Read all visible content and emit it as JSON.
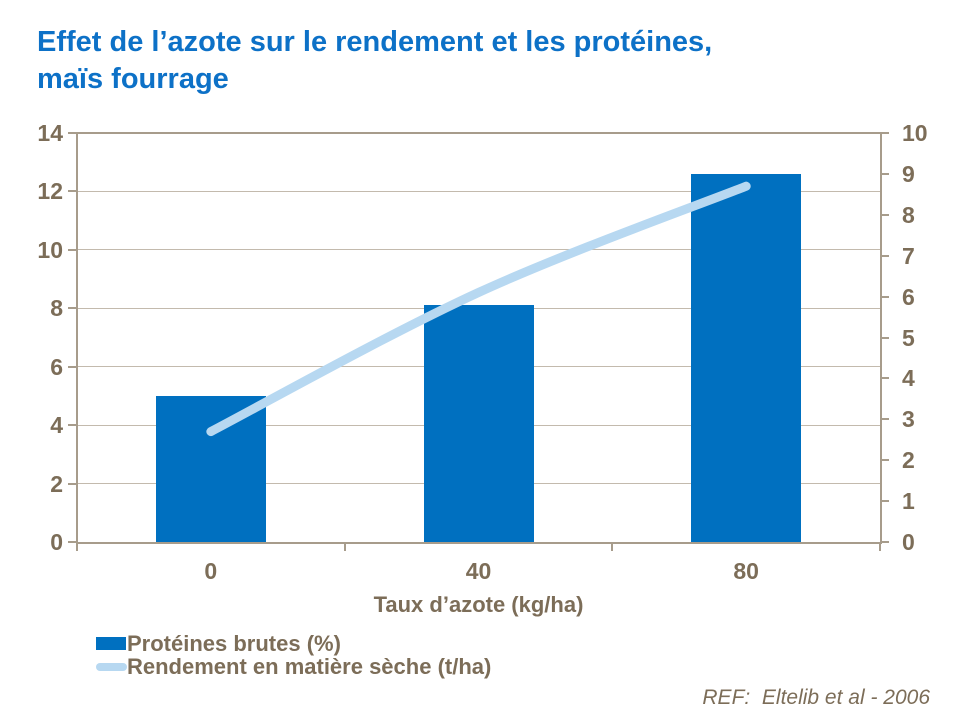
{
  "page": {
    "title_line1": "Effet de l’azote sur le rendement et les protéines,",
    "title_line2": "maïs fourrage",
    "reference": "REF:  Eltelib et al - 2006"
  },
  "colors": {
    "title_blue": "#0D71C7",
    "bar_blue": "#0070C0",
    "line_light_blue": "#B7D8F1",
    "text_brown": "#7C6D58",
    "axis_line": "#A79C8B",
    "gridline": "#C3BAAD"
  },
  "chart_data": {
    "type": "bar+line",
    "categories": [
      "0",
      "40",
      "80"
    ],
    "xlabel": "Taux d’azote (kg/ha)",
    "series": [
      {
        "name": "Protéines brutes (%)",
        "type": "bar",
        "axis": "left",
        "color": "#0070C0",
        "values": [
          5.0,
          8.1,
          12.6
        ]
      },
      {
        "name": "Rendement en matière sèche (t/ha)",
        "type": "line",
        "axis": "right",
        "color": "#B7D8F1",
        "values": [
          2.7,
          6.1,
          8.7
        ],
        "smooth": true
      }
    ],
    "left_axis": {
      "min": 0,
      "max": 14,
      "tick_step": 2,
      "tick_labels": [
        "0",
        "2",
        "4",
        "6",
        "8",
        "10",
        "12",
        "14"
      ]
    },
    "right_axis": {
      "min": 0,
      "max": 10,
      "tick_step": 1,
      "tick_labels": [
        "0",
        "1",
        "2",
        "3",
        "4",
        "5",
        "6",
        "7",
        "8",
        "9",
        "10"
      ]
    },
    "grid": "horizontal gridlines at left-axis steps of 2",
    "legend_position": "bottom-left"
  }
}
